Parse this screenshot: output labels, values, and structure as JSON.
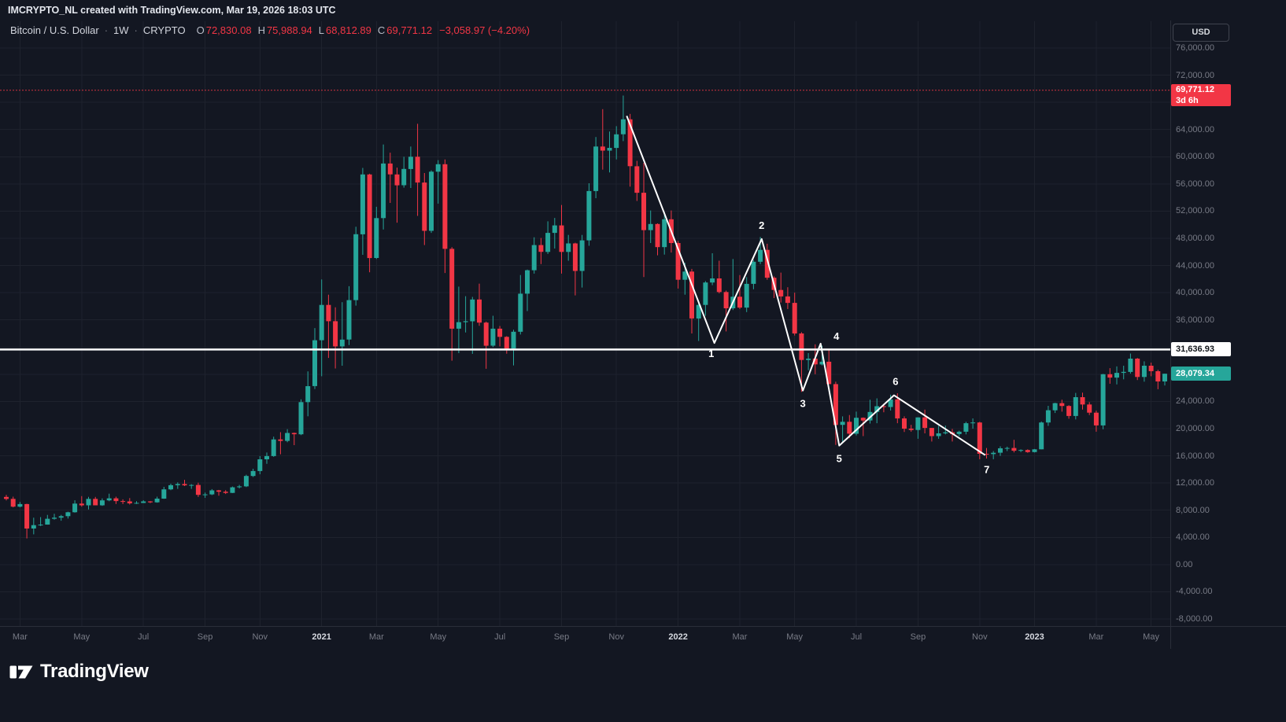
{
  "attribution": "IMCRYPTO_NL created with TradingView.com, Mar 19, 2026 18:03 UTC",
  "header": {
    "symbol": "Bitcoin / U.S. Dollar",
    "separator": "·",
    "interval": "1W",
    "market": "CRYPTO",
    "ohlc": {
      "o_label": "O",
      "o_value": "72,830.08",
      "h_label": "H",
      "h_value": "75,988.94",
      "l_label": "L",
      "l_value": "68,812.89",
      "c_label": "C",
      "c_value": "69,771.12",
      "change": "−3,058.97 (−4.20%)"
    }
  },
  "theme": {
    "background": "#131722",
    "grid_color": "#1e222d",
    "up_color": "#26a69a",
    "down_color": "#f23645",
    "drawing_color": "#ffffff",
    "axis_text_color": "#787b86"
  },
  "price_axis": {
    "currency_button": "USD",
    "ticks": [
      {
        "label": "76,000.00",
        "value": 76000
      },
      {
        "label": "72,000.00",
        "value": 72000
      },
      {
        "label": "68,000.00",
        "value": 68000
      },
      {
        "label": "64,000.00",
        "value": 64000
      },
      {
        "label": "60,000.00",
        "value": 60000
      },
      {
        "label": "56,000.00",
        "value": 56000
      },
      {
        "label": "52,000.00",
        "value": 52000
      },
      {
        "label": "48,000.00",
        "value": 48000
      },
      {
        "label": "44,000.00",
        "value": 44000
      },
      {
        "label": "40,000.00",
        "value": 40000
      },
      {
        "label": "36,000.00",
        "value": 36000
      },
      {
        "label": "32,000.00",
        "value": 32000
      },
      {
        "label": "28,000.00",
        "value": 28000
      },
      {
        "label": "24,000.00",
        "value": 24000
      },
      {
        "label": "20,000.00",
        "value": 20000
      },
      {
        "label": "16,000.00",
        "value": 16000
      },
      {
        "label": "12,000.00",
        "value": 12000
      },
      {
        "label": "8,000.00",
        "value": 8000
      },
      {
        "label": "4,000.00",
        "value": 4000
      },
      {
        "label": "0.00",
        "value": 0
      },
      {
        "label": "-4,000.00",
        "value": -4000
      },
      {
        "label": "-8,000.00",
        "value": -8000
      }
    ],
    "last_price_label": {
      "price": "69,771.12",
      "countdown": "3d 6h",
      "value": 69771.12,
      "color": "#f23645"
    },
    "hline_label": {
      "price": "31,636.93",
      "value": 31636.93,
      "color": "#ffffff"
    },
    "green_label": {
      "price": "28,079.34",
      "value": 28079.34,
      "color": "#26a69a"
    }
  },
  "time_axis": {
    "labels": [
      {
        "text": "Mar",
        "week": 2,
        "year": false
      },
      {
        "text": "May",
        "week": 11,
        "year": false
      },
      {
        "text": "Jul",
        "week": 20,
        "year": false
      },
      {
        "text": "Sep",
        "week": 29,
        "year": false
      },
      {
        "text": "Nov",
        "week": 37,
        "year": false
      },
      {
        "text": "2021",
        "week": 46,
        "year": true
      },
      {
        "text": "Mar",
        "week": 54,
        "year": false
      },
      {
        "text": "May",
        "week": 63,
        "year": false
      },
      {
        "text": "Jul",
        "week": 72,
        "year": false
      },
      {
        "text": "Sep",
        "week": 81,
        "year": false
      },
      {
        "text": "Nov",
        "week": 89,
        "year": false
      },
      {
        "text": "2022",
        "week": 98,
        "year": true
      },
      {
        "text": "Mar",
        "week": 107,
        "year": false
      },
      {
        "text": "May",
        "week": 115,
        "year": false
      },
      {
        "text": "Jul",
        "week": 124,
        "year": false
      },
      {
        "text": "Sep",
        "week": 133,
        "year": false
      },
      {
        "text": "Nov",
        "week": 142,
        "year": false
      },
      {
        "text": "2023",
        "week": 150,
        "year": true
      },
      {
        "text": "Mar",
        "week": 159,
        "year": false
      },
      {
        "text": "May",
        "week": 167,
        "year": false
      }
    ]
  },
  "chart_data": {
    "type": "candlestick",
    "symbol": "BTCUSD",
    "description": "Bitcoin / U.S. Dollar",
    "interval": "1W",
    "market": "CRYPTO",
    "y_axis": {
      "min": -8000,
      "max": 76000,
      "tick_step": 4000,
      "grid": true
    },
    "current_price_line": 69771.12,
    "horizontal_line": 31636.93,
    "candles": [
      [
        9960,
        10250,
        9450,
        9660
      ],
      [
        9660,
        9990,
        8410,
        8520
      ],
      [
        8520,
        9200,
        8410,
        8900
      ],
      [
        8900,
        8950,
        3850,
        5300
      ],
      [
        5300,
        6900,
        4450,
        5800
      ],
      [
        5800,
        6985,
        5660,
        5880
      ],
      [
        5880,
        7300,
        5870,
        6740
      ],
      [
        6740,
        7470,
        6600,
        6900
      ],
      [
        6900,
        7300,
        6450,
        7120
      ],
      [
        7120,
        7780,
        6770,
        7700
      ],
      [
        7700,
        9460,
        7640,
        8970
      ],
      [
        8970,
        10070,
        8520,
        8720
      ],
      [
        8720,
        9950,
        8100,
        9670
      ],
      [
        9670,
        9950,
        8800,
        8720
      ],
      [
        8720,
        9740,
        8640,
        9450
      ],
      [
        9450,
        10430,
        9320,
        9750
      ],
      [
        9750,
        9990,
        8910,
        9340
      ],
      [
        9340,
        9590,
        8900,
        9300
      ],
      [
        9300,
        9780,
        8830,
        9010
      ],
      [
        9010,
        9320,
        8930,
        9070
      ],
      [
        9070,
        9470,
        9050,
        9300
      ],
      [
        9300,
        9340,
        9040,
        9160
      ],
      [
        9160,
        9990,
        9100,
        9700
      ],
      [
        9700,
        11440,
        9660,
        11070
      ],
      [
        11070,
        11900,
        10940,
        11680
      ],
      [
        11680,
        12090,
        11130,
        11850
      ],
      [
        11850,
        12470,
        11550,
        11650
      ],
      [
        11650,
        11830,
        11130,
        11710
      ],
      [
        11710,
        12050,
        9960,
        10250
      ],
      [
        10250,
        10590,
        9820,
        10330
      ],
      [
        10330,
        11100,
        10220,
        10920
      ],
      [
        10920,
        10980,
        10140,
        10720
      ],
      [
        10720,
        10950,
        10380,
        10550
      ],
      [
        10550,
        11480,
        10520,
        11370
      ],
      [
        11370,
        11720,
        11200,
        11500
      ],
      [
        11500,
        13220,
        11400,
        13030
      ],
      [
        13030,
        14100,
        12880,
        13760
      ],
      [
        13760,
        15960,
        13290,
        15480
      ],
      [
        15480,
        16480,
        14810,
        15960
      ],
      [
        15960,
        18820,
        15860,
        18410
      ],
      [
        18410,
        19480,
        16220,
        18190
      ],
      [
        18190,
        19920,
        18000,
        19360
      ],
      [
        19360,
        19420,
        17570,
        19170
      ],
      [
        19170,
        24300,
        19050,
        23900
      ],
      [
        23900,
        28420,
        21810,
        26250
      ],
      [
        26250,
        34800,
        25830,
        33000
      ],
      [
        33000,
        41950,
        27700,
        38200
      ],
      [
        38200,
        39700,
        30400,
        35800
      ],
      [
        35800,
        37850,
        28850,
        32100
      ],
      [
        32100,
        38600,
        29250,
        33100
      ],
      [
        33100,
        40950,
        32300,
        38900
      ],
      [
        38900,
        49700,
        38100,
        48600
      ],
      [
        48600,
        58350,
        45570,
        57400
      ],
      [
        57400,
        57500,
        43000,
        45100
      ],
      [
        45100,
        52640,
        44950,
        50970
      ],
      [
        50970,
        61800,
        49300,
        59000
      ],
      [
        59000,
        60600,
        53200,
        57400
      ],
      [
        57400,
        58400,
        50300,
        55800
      ],
      [
        55800,
        60000,
        55450,
        58200
      ],
      [
        58200,
        61500,
        55400,
        60000
      ],
      [
        60000,
        64850,
        51300,
        56200
      ],
      [
        56200,
        57600,
        47000,
        49100
      ],
      [
        49100,
        58000,
        48800,
        57800
      ],
      [
        57800,
        59500,
        53100,
        58900
      ],
      [
        58900,
        59600,
        42900,
        46450
      ],
      [
        46450,
        46700,
        30000,
        34700
      ],
      [
        34700,
        40900,
        31100,
        35660
      ],
      [
        35660,
        39480,
        34150,
        35800
      ],
      [
        35800,
        39380,
        31000,
        39000
      ],
      [
        39000,
        41330,
        35130,
        35600
      ],
      [
        35600,
        35750,
        28800,
        32200
      ],
      [
        32200,
        36600,
        32000,
        34700
      ],
      [
        34700,
        35100,
        32100,
        33500
      ],
      [
        33500,
        33600,
        31020,
        31780
      ],
      [
        31780,
        34550,
        29300,
        34250
      ],
      [
        34250,
        42600,
        33850,
        39850
      ],
      [
        39850,
        43400,
        37300,
        43300
      ],
      [
        43300,
        48150,
        42800,
        47000
      ],
      [
        47000,
        48050,
        44200,
        46000
      ],
      [
        46000,
        50500,
        45700,
        48800
      ],
      [
        48800,
        51000,
        46500,
        49900
      ],
      [
        49900,
        52900,
        42800,
        46000
      ],
      [
        46000,
        48500,
        44700,
        47250
      ],
      [
        47250,
        47350,
        39600,
        43200
      ],
      [
        43200,
        48500,
        40750,
        47700
      ],
      [
        47700,
        56100,
        46900,
        54950
      ],
      [
        54950,
        62900,
        53900,
        61500
      ],
      [
        61500,
        67000,
        58100,
        60900
      ],
      [
        60900,
        63700,
        57700,
        61300
      ],
      [
        61300,
        64500,
        59600,
        63300
      ],
      [
        63300,
        69000,
        62300,
        65500
      ],
      [
        65500,
        66300,
        55600,
        58600
      ],
      [
        58600,
        59400,
        53500,
        54700
      ],
      [
        54700,
        59100,
        42300,
        49200
      ],
      [
        49200,
        52100,
        47300,
        50100
      ],
      [
        50100,
        50200,
        45500,
        46700
      ],
      [
        46700,
        51900,
        45600,
        50800
      ],
      [
        50800,
        52100,
        45900,
        47300
      ],
      [
        47300,
        47600,
        40600,
        41900
      ],
      [
        41900,
        44400,
        39700,
        43100
      ],
      [
        43100,
        43500,
        34000,
        36200
      ],
      [
        36200,
        38700,
        32900,
        38200
      ],
      [
        38200,
        41700,
        36600,
        41500
      ],
      [
        41500,
        45800,
        41100,
        42100
      ],
      [
        42100,
        44700,
        39900,
        40100
      ],
      [
        40100,
        40300,
        34300,
        37700
      ],
      [
        37700,
        44950,
        37450,
        39400
      ],
      [
        39400,
        42600,
        37600,
        37800
      ],
      [
        37800,
        42300,
        37150,
        41300
      ],
      [
        41300,
        44800,
        40500,
        44550
      ],
      [
        44550,
        48200,
        44200,
        46300
      ],
      [
        46300,
        47200,
        41900,
        42200
      ],
      [
        42200,
        42400,
        39200,
        40400
      ],
      [
        40400,
        42950,
        38550,
        39450
      ],
      [
        39450,
        40800,
        37600,
        38500
      ],
      [
        38500,
        40000,
        33700,
        34000
      ],
      [
        34000,
        34200,
        25400,
        30100
      ],
      [
        30100,
        31100,
        28600,
        30300
      ],
      [
        30300,
        32400,
        28000,
        29450
      ],
      [
        29450,
        32200,
        29300,
        29850
      ],
      [
        29850,
        31700,
        26700,
        26550
      ],
      [
        26550,
        26900,
        17600,
        20550
      ],
      [
        20550,
        21800,
        17900,
        21000
      ],
      [
        21000,
        22000,
        18600,
        19250
      ],
      [
        19250,
        22500,
        19000,
        21600
      ],
      [
        21600,
        21650,
        18900,
        21200
      ],
      [
        21200,
        24250,
        20750,
        22450
      ],
      [
        22450,
        24450,
        20800,
        23300
      ],
      [
        23300,
        23650,
        22400,
        23180
      ],
      [
        23180,
        25000,
        22660,
        24300
      ],
      [
        24300,
        25200,
        20800,
        21500
      ],
      [
        21500,
        21800,
        19500,
        20000
      ],
      [
        20000,
        20550,
        19550,
        19800
      ],
      [
        19800,
        21650,
        18500,
        21650
      ],
      [
        21650,
        22800,
        19300,
        20100
      ],
      [
        20100,
        20100,
        18100,
        18900
      ],
      [
        18900,
        20400,
        18500,
        19300
      ],
      [
        19300,
        20450,
        19150,
        19450
      ],
      [
        19450,
        19950,
        18100,
        19200
      ],
      [
        19200,
        19700,
        18900,
        19550
      ],
      [
        19550,
        21000,
        19150,
        20800
      ],
      [
        20800,
        21500,
        20000,
        20900
      ],
      [
        20900,
        21000,
        15500,
        16300
      ],
      [
        16300,
        17150,
        15600,
        16250
      ],
      [
        16250,
        16700,
        15500,
        16450
      ],
      [
        16450,
        17400,
        16000,
        17100
      ],
      [
        17100,
        17350,
        16700,
        17150
      ],
      [
        17150,
        18350,
        16500,
        16750
      ],
      [
        16750,
        16950,
        16550,
        16850
      ],
      [
        16850,
        16950,
        16450,
        16550
      ],
      [
        16550,
        17000,
        16500,
        16950
      ],
      [
        16950,
        21050,
        16950,
        20900
      ],
      [
        20900,
        23350,
        20400,
        22700
      ],
      [
        22700,
        23800,
        22300,
        23750
      ],
      [
        23750,
        24250,
        22500,
        23330
      ],
      [
        23330,
        23450,
        21450,
        21860
      ],
      [
        21860,
        25250,
        21350,
        24630
      ],
      [
        24630,
        25300,
        22800,
        23550
      ],
      [
        23550,
        23900,
        22000,
        22350
      ],
      [
        22350,
        22650,
        19550,
        20470
      ],
      [
        20470,
        28050,
        19900,
        28000
      ],
      [
        28000,
        28900,
        26600,
        27500
      ],
      [
        27500,
        29150,
        26500,
        28200
      ],
      [
        28200,
        29250,
        27250,
        28350
      ],
      [
        28350,
        31050,
        28100,
        30300
      ],
      [
        30300,
        30400,
        27150,
        27600
      ],
      [
        27600,
        29900,
        26900,
        29250
      ],
      [
        29250,
        29700,
        27700,
        28450
      ],
      [
        28450,
        28650,
        25800,
        26950
      ],
      [
        26950,
        28100,
        26350,
        28079.34
      ]
    ],
    "wave_annotation": {
      "points": [
        {
          "week": 90.5,
          "price": 66000,
          "label": null
        },
        {
          "week": 103.3,
          "price": 32600,
          "label": "1",
          "label_offset": [
            -4,
            18
          ]
        },
        {
          "week": 110.2,
          "price": 47900,
          "label": "2",
          "label_offset": [
            0,
            -13
          ]
        },
        {
          "week": 116.2,
          "price": 25600,
          "label": "3",
          "label_offset": [
            0,
            21
          ]
        },
        {
          "week": 118.8,
          "price": 32500,
          "label": "4",
          "label_offset": [
            20,
            -5
          ]
        },
        {
          "week": 121.5,
          "price": 17500,
          "label": "5",
          "label_offset": [
            0,
            21
          ]
        },
        {
          "week": 129.5,
          "price": 24900,
          "label": "6",
          "label_offset": [
            2,
            -13
          ]
        },
        {
          "week": 142.8,
          "price": 16100,
          "label": "7",
          "label_offset": [
            2,
            23
          ]
        }
      ]
    }
  },
  "logo": {
    "text": "TradingView"
  }
}
